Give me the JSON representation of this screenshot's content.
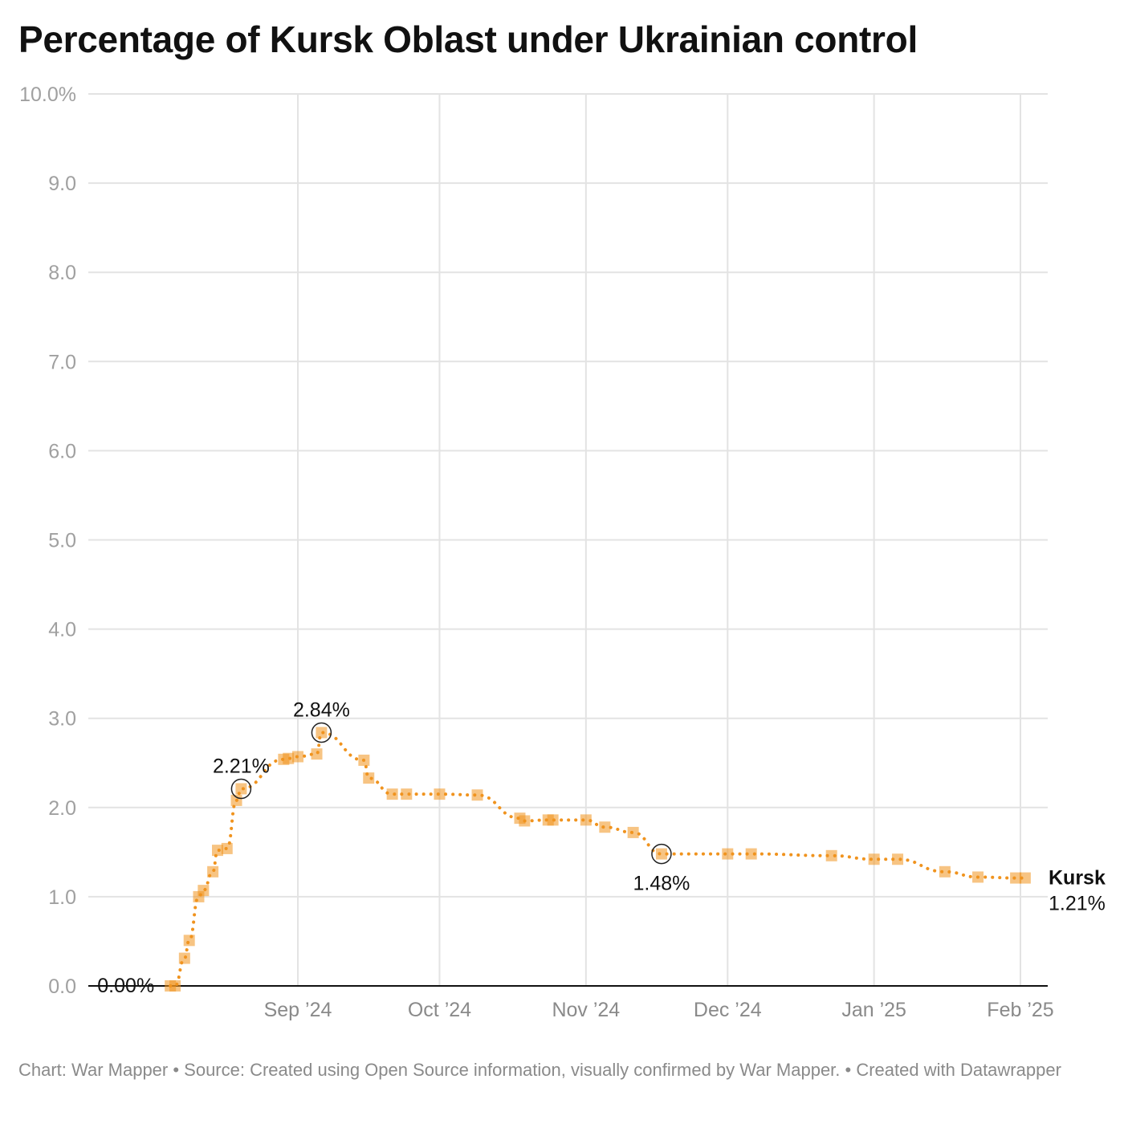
{
  "chart_data": {
    "type": "line",
    "title": "Percentage of Kursk Oblast under Ukrainian control",
    "xlabel": "",
    "ylabel": "",
    "ylim": [
      0,
      10
    ],
    "yticks": [
      {
        "v": 0,
        "label": "0.0"
      },
      {
        "v": 1,
        "label": "1.0"
      },
      {
        "v": 2,
        "label": "2.0"
      },
      {
        "v": 3,
        "label": "3.0"
      },
      {
        "v": 4,
        "label": "4.0"
      },
      {
        "v": 5,
        "label": "5.0"
      },
      {
        "v": 6,
        "label": "6.0"
      },
      {
        "v": 7,
        "label": "7.0"
      },
      {
        "v": 8,
        "label": "8.0"
      },
      {
        "v": 9,
        "label": "9.0"
      },
      {
        "v": 10,
        "label": "10.0%"
      }
    ],
    "xticks": [
      {
        "date": "2024-09-01",
        "label": "Sep ’24"
      },
      {
        "date": "2024-10-01",
        "label": "Oct ’24"
      },
      {
        "date": "2024-11-01",
        "label": "Nov ’24"
      },
      {
        "date": "2024-12-01",
        "label": "Dec ’24"
      },
      {
        "date": "2025-01-01",
        "label": "Jan ’25"
      },
      {
        "date": "2025-02-01",
        "label": "Feb ’25"
      }
    ],
    "grid": true,
    "series": [
      {
        "name": "Kursk",
        "color": "#f0931e",
        "end_label": "1.21%",
        "points": [
          [
            "2024-08-05",
            0.0
          ],
          [
            "2024-08-06",
            0.0
          ],
          [
            "2024-08-08",
            0.31
          ],
          [
            "2024-08-09",
            0.51
          ],
          [
            "2024-08-11",
            1.0
          ],
          [
            "2024-08-12",
            1.07
          ],
          [
            "2024-08-14",
            1.28
          ],
          [
            "2024-08-15",
            1.52
          ],
          [
            "2024-08-17",
            1.54
          ],
          [
            "2024-08-19",
            2.08
          ],
          [
            "2024-08-20",
            2.21
          ],
          [
            "2024-08-29",
            2.54
          ],
          [
            "2024-08-30",
            2.55
          ],
          [
            "2024-09-01",
            2.57
          ],
          [
            "2024-09-05",
            2.6
          ],
          [
            "2024-09-06",
            2.84
          ],
          [
            "2024-09-15",
            2.53
          ],
          [
            "2024-09-16",
            2.33
          ],
          [
            "2024-09-21",
            2.15
          ],
          [
            "2024-09-24",
            2.15
          ],
          [
            "2024-10-01",
            2.15
          ],
          [
            "2024-10-09",
            2.14
          ],
          [
            "2024-10-18",
            1.88
          ],
          [
            "2024-10-19",
            1.85
          ],
          [
            "2024-10-24",
            1.86
          ],
          [
            "2024-10-25",
            1.86
          ],
          [
            "2024-11-01",
            1.86
          ],
          [
            "2024-11-05",
            1.78
          ],
          [
            "2024-11-11",
            1.72
          ],
          [
            "2024-11-17",
            1.48
          ],
          [
            "2024-12-01",
            1.48
          ],
          [
            "2024-12-06",
            1.48
          ],
          [
            "2024-12-23",
            1.46
          ],
          [
            "2025-01-01",
            1.42
          ],
          [
            "2025-01-06",
            1.42
          ],
          [
            "2025-01-16",
            1.28
          ],
          [
            "2025-01-23",
            1.22
          ],
          [
            "2025-01-31",
            1.21
          ],
          [
            "2025-02-02",
            1.21
          ]
        ]
      }
    ],
    "annotations": [
      {
        "date": "2024-08-05",
        "value": 0.0,
        "label": "0.00%",
        "pos": "left"
      },
      {
        "date": "2024-08-20",
        "value": 2.21,
        "label": "2.21%",
        "pos": "above",
        "circle": true
      },
      {
        "date": "2024-09-06",
        "value": 2.84,
        "label": "2.84%",
        "pos": "above",
        "circle": true
      },
      {
        "date": "2024-11-17",
        "value": 1.48,
        "label": "1.48%",
        "pos": "below",
        "circle": true
      }
    ]
  },
  "footer": "Chart: War Mapper • Source: Created using Open Source information, visually confirmed by War Mapper. • Created with Datawrapper"
}
